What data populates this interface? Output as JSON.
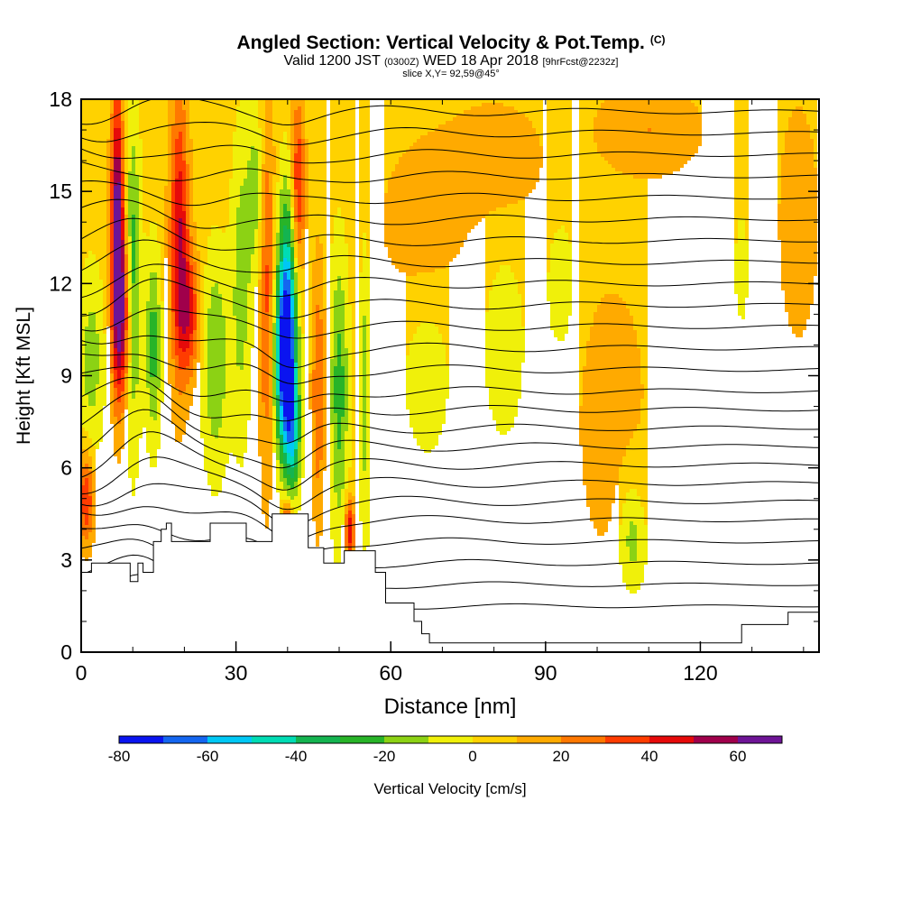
{
  "header": {
    "title": "Angled Section: Vertical Velocity & Pot.Temp.",
    "title_unit": "(C)",
    "valid_prefix": "Valid 1200 JST",
    "valid_z": "(0300Z)",
    "valid_date": "WED 18 Apr 2018",
    "forecast": "[9hrFcst@2232z]",
    "slice": "slice X,Y= 92,59@45°"
  },
  "chart_data": {
    "type": "heatmap",
    "xlabel": "Distance [nm]",
    "ylabel": "Height [Kft MSL]",
    "xlim": [
      0,
      143
    ],
    "ylim": [
      0,
      18
    ],
    "x_ticks": [
      0,
      30,
      60,
      90,
      120
    ],
    "y_ticks": [
      0,
      3,
      6,
      9,
      12,
      15,
      18
    ],
    "colorbar": {
      "label": "Vertical Velocity [cm/s]",
      "ticks": [
        -80,
        -60,
        -40,
        -20,
        0,
        20,
        40,
        60
      ],
      "bounds": [
        -80,
        70
      ],
      "step": 10,
      "colors": [
        "#0a14f0",
        "#1466f0",
        "#00c8f5",
        "#00dcb4",
        "#14b450",
        "#28b428",
        "#8cd214",
        "#f0f00a",
        "#ffd200",
        "#ffaa00",
        "#ff7800",
        "#ff3c00",
        "#e60a0a",
        "#a0004b",
        "#6e1496"
      ]
    },
    "background_value": 5,
    "velocity_features": [
      {
        "x": 1,
        "y": 5.0,
        "x_width": 1.5,
        "y_height": 1.5,
        "value": 35
      },
      {
        "x": 2,
        "y": 9.5,
        "x_width": 2.5,
        "y_height": 3.0,
        "value": -20
      },
      {
        "x": 7,
        "y": 14.0,
        "x_width": 1.2,
        "y_height": 4.5,
        "value": 60
      },
      {
        "x": 8,
        "y": 11.0,
        "x_width": 1.8,
        "y_height": 3.0,
        "value": 45
      },
      {
        "x": 10,
        "y": 12.0,
        "x_width": 1.5,
        "y_height": 5.0,
        "value": -35
      },
      {
        "x": 14,
        "y": 10.0,
        "x_width": 1.5,
        "y_height": 3.0,
        "value": -30
      },
      {
        "x": 19,
        "y": 13.5,
        "x_width": 1.8,
        "y_height": 4.5,
        "value": 45
      },
      {
        "x": 21,
        "y": 11.0,
        "x_width": 2.0,
        "y_height": 2.0,
        "value": 35
      },
      {
        "x": 26,
        "y": 9.5,
        "x_width": 2.5,
        "y_height": 3.5,
        "value": -25
      },
      {
        "x": 31,
        "y": 12.0,
        "x_width": 2.0,
        "y_height": 5.0,
        "value": -20
      },
      {
        "x": 34,
        "y": 15.0,
        "x_width": 1.8,
        "y_height": 3.0,
        "value": -20
      },
      {
        "x": 36,
        "y": 12.0,
        "x_width": 1.5,
        "y_height": 6.0,
        "value": 30
      },
      {
        "x": 39.5,
        "y": 9.3,
        "x_width": 2.0,
        "y_height": 2.8,
        "value": -75
      },
      {
        "x": 40,
        "y": 12.0,
        "x_width": 2.0,
        "y_height": 3.5,
        "value": -45
      },
      {
        "x": 41,
        "y": 7.0,
        "x_width": 1.5,
        "y_height": 2.0,
        "value": -40
      },
      {
        "x": 40,
        "y": 4.3,
        "x_width": 1.0,
        "y_height": 0.6,
        "value": 40
      },
      {
        "x": 42,
        "y": 15.0,
        "x_width": 1.3,
        "y_height": 3.0,
        "value": 40
      },
      {
        "x": 46,
        "y": 8.5,
        "x_width": 1.3,
        "y_height": 4.0,
        "value": 25
      },
      {
        "x": 50,
        "y": 8.5,
        "x_width": 1.8,
        "y_height": 4.5,
        "value": -30
      },
      {
        "x": 52,
        "y": 4.0,
        "x_width": 0.9,
        "y_height": 1.0,
        "value": 45
      },
      {
        "x": 55,
        "y": 8.5,
        "x_width": 1.0,
        "y_height": 5.0,
        "value": -20
      },
      {
        "x": 67,
        "y": 9.0,
        "x_width": 5.0,
        "y_height": 3.0,
        "value": -10
      },
      {
        "x": 82,
        "y": 10.0,
        "x_width": 4.5,
        "y_height": 3.5,
        "value": -10
      },
      {
        "x": 93,
        "y": 12.0,
        "x_width": 3.0,
        "y_height": 2.5,
        "value": -10
      },
      {
        "x": 106,
        "y": 5.0,
        "x_width": 3.0,
        "y_height": 2.5,
        "value": -10
      },
      {
        "x": 107,
        "y": 3.5,
        "x_width": 2.5,
        "y_height": 1.5,
        "value": -15
      },
      {
        "x": 103,
        "y": 7.5,
        "x_width": 6.0,
        "y_height": 4.0,
        "value": 15
      },
      {
        "x": 110,
        "y": 17.0,
        "x_width": 10.0,
        "y_height": 1.5,
        "value": 15
      },
      {
        "x": 128,
        "y": 12.5,
        "x_width": 1.5,
        "y_height": 2.0,
        "value": -10
      },
      {
        "x": 80,
        "y": 16.0,
        "x_width": 10.0,
        "y_height": 2.0,
        "value": 12
      },
      {
        "x": 66,
        "y": 14.0,
        "x_width": 8.0,
        "y_height": 2.5,
        "value": 12
      },
      {
        "x": 139,
        "y": 14.0,
        "x_width": 4.0,
        "y_height": 4.0,
        "value": 12
      }
    ],
    "terrain_kft": [
      [
        0,
        2.6
      ],
      [
        2,
        2.9
      ],
      [
        8,
        2.9
      ],
      [
        9.5,
        2.3
      ],
      [
        11,
        2.9
      ],
      [
        12,
        2.6
      ],
      [
        14,
        3.6
      ],
      [
        15.5,
        4.0
      ],
      [
        16.5,
        4.2
      ],
      [
        17.5,
        3.6
      ],
      [
        23,
        3.6
      ],
      [
        25,
        4.2
      ],
      [
        31,
        4.2
      ],
      [
        32,
        3.6
      ],
      [
        35,
        3.6
      ],
      [
        37,
        4.5
      ],
      [
        41,
        4.5
      ],
      [
        44,
        3.4
      ],
      [
        47,
        2.9
      ],
      [
        50,
        2.9
      ],
      [
        51,
        3.3
      ],
      [
        53,
        3.3
      ],
      [
        57,
        2.6
      ],
      [
        59,
        1.6
      ],
      [
        63,
        1.6
      ],
      [
        64.5,
        1.0
      ],
      [
        66,
        0.6
      ],
      [
        67.5,
        0.3
      ],
      [
        75,
        0.3
      ],
      [
        90,
        0.3
      ],
      [
        113,
        0.3
      ],
      [
        127,
        0.3
      ],
      [
        128,
        0.9
      ],
      [
        136,
        0.9
      ],
      [
        137,
        1.3
      ],
      [
        143,
        1.3
      ]
    ],
    "theta_levels": [
      {
        "y": 1.5,
        "amp": 0.3
      },
      {
        "y": 2.2,
        "amp": 0.35
      },
      {
        "y": 2.9,
        "amp": 0.4
      },
      {
        "y": 3.6,
        "amp": 0.4
      },
      {
        "y": 4.3,
        "amp": 0.45
      },
      {
        "y": 4.9,
        "amp": 0.5
      },
      {
        "y": 5.5,
        "amp": 0.5
      },
      {
        "y": 6.1,
        "amp": 0.5
      },
      {
        "y": 6.7,
        "amp": 0.5
      },
      {
        "y": 7.3,
        "amp": 0.5
      },
      {
        "y": 7.9,
        "amp": 0.5
      },
      {
        "y": 8.5,
        "amp": 0.5
      },
      {
        "y": 9.2,
        "amp": 0.5
      },
      {
        "y": 9.9,
        "amp": 0.5
      },
      {
        "y": 10.6,
        "amp": 0.5
      },
      {
        "y": 11.3,
        "amp": 0.5
      },
      {
        "y": 12.0,
        "amp": 0.5
      },
      {
        "y": 12.7,
        "amp": 0.5
      },
      {
        "y": 13.4,
        "amp": 0.5
      },
      {
        "y": 14.1,
        "amp": 0.5
      },
      {
        "y": 14.8,
        "amp": 0.5
      },
      {
        "y": 15.5,
        "amp": 0.5
      },
      {
        "y": 16.2,
        "amp": 0.5
      },
      {
        "y": 16.9,
        "amp": 0.5
      },
      {
        "y": 17.6,
        "amp": 0.5
      }
    ]
  }
}
